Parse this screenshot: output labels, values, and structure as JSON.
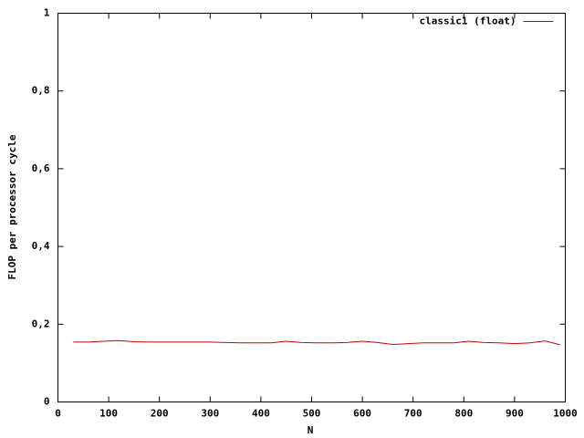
{
  "chart_data": {
    "type": "line",
    "xlabel": "N",
    "ylabel": "FLOP per processor cycle",
    "x": [
      30,
      60,
      90,
      120,
      150,
      180,
      210,
      240,
      270,
      300,
      330,
      360,
      390,
      420,
      450,
      480,
      510,
      540,
      570,
      600,
      630,
      660,
      690,
      720,
      750,
      780,
      810,
      840,
      870,
      900,
      930,
      960,
      990
    ],
    "series": [
      {
        "name": "classic1 (float)",
        "color": "#cc0000",
        "values": [
          0.154,
          0.154,
          0.156,
          0.158,
          0.155,
          0.154,
          0.154,
          0.154,
          0.154,
          0.154,
          0.153,
          0.152,
          0.152,
          0.152,
          0.156,
          0.153,
          0.152,
          0.152,
          0.153,
          0.156,
          0.153,
          0.148,
          0.15,
          0.152,
          0.152,
          0.152,
          0.156,
          0.153,
          0.152,
          0.15,
          0.152,
          0.157,
          0.147
        ]
      }
    ],
    "xlim": [
      0,
      1000
    ],
    "xticks": [
      0,
      100,
      200,
      300,
      400,
      500,
      600,
      700,
      800,
      900,
      1000
    ],
    "ylim": [
      0,
      1
    ],
    "yticks": [
      0,
      {
        "value": 0.2,
        "label": "0,2"
      },
      {
        "value": 0.4,
        "label": "0,4"
      },
      {
        "value": 0.6,
        "label": "0,6"
      },
      {
        "value": 0.8,
        "label": "0,8"
      },
      1
    ],
    "legend": "top-right"
  }
}
